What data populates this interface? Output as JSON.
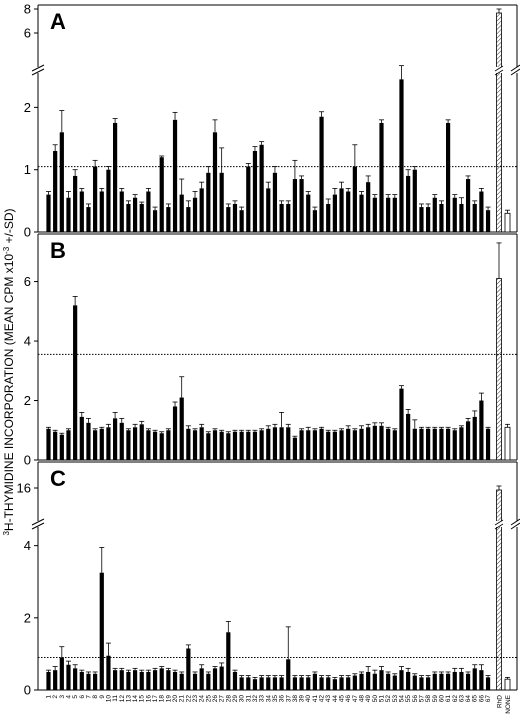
{
  "figure": {
    "ylabel_main": "3H-THYMIDINE INCORPORATION (MEAN CPM x10",
    "ylabel_sup": "-3",
    "ylabel_tail": " +/-SD)",
    "ylabel_pre": "3",
    "ylabel_pre2": "H-THYMIDINE INCORPORATION (MEAN CPM x10",
    "control_labels": [
      "RhD",
      "NONE"
    ]
  },
  "chart_data": [
    {
      "type": "bar",
      "panel": "A",
      "categories": [
        "1",
        "2",
        "3",
        "4",
        "5",
        "6",
        "7",
        "8",
        "9",
        "10",
        "11",
        "12",
        "13",
        "14",
        "15",
        "16",
        "17",
        "18",
        "19",
        "20",
        "21",
        "22",
        "23",
        "24",
        "25",
        "26",
        "27",
        "28",
        "29",
        "30",
        "31",
        "32",
        "33",
        "34",
        "35",
        "36",
        "37",
        "38",
        "39",
        "40",
        "41",
        "42",
        "43",
        "44",
        "45",
        "46",
        "47",
        "48",
        "49",
        "50",
        "51",
        "52",
        "53",
        "54",
        "55",
        "56",
        "57",
        "58",
        "59",
        "60",
        "61",
        "62",
        "63",
        "64",
        "65",
        "66",
        "67"
      ],
      "values": [
        0.6,
        1.3,
        1.6,
        0.55,
        0.9,
        0.65,
        0.4,
        1.05,
        0.65,
        1.0,
        1.75,
        0.65,
        0.45,
        0.55,
        0.45,
        0.65,
        0.35,
        1.2,
        0.4,
        1.8,
        0.6,
        0.4,
        0.55,
        0.7,
        0.95,
        1.6,
        0.95,
        0.4,
        0.45,
        0.35,
        1.05,
        1.3,
        1.4,
        0.7,
        0.95,
        0.45,
        0.45,
        0.85,
        0.85,
        0.6,
        0.35,
        1.85,
        0.45,
        0.6,
        0.7,
        0.65,
        1.05,
        0.6,
        0.8,
        0.55,
        1.75,
        0.55,
        0.55,
        2.45,
        0.9,
        1.0,
        0.4,
        0.4,
        0.55,
        0.45,
        1.75,
        0.55,
        0.45,
        0.85,
        0.45,
        0.65,
        0.35
      ],
      "errors": [
        0.05,
        0.1,
        0.35,
        0.1,
        0.1,
        0.05,
        0.05,
        0.1,
        0.05,
        0.05,
        0.07,
        0.05,
        0.05,
        0.05,
        0.03,
        0.05,
        0.05,
        0.02,
        0.05,
        0.12,
        0.25,
        0.1,
        0.1,
        0.1,
        0.1,
        0.2,
        0.4,
        0.05,
        0.05,
        0.05,
        0.05,
        0.07,
        0.05,
        0.1,
        0.1,
        0.05,
        0.05,
        0.3,
        0.05,
        0.05,
        0.05,
        0.08,
        0.08,
        0.1,
        0.1,
        0.05,
        0.35,
        0.05,
        0.1,
        0.05,
        0.05,
        0.05,
        0.05,
        0.22,
        0.1,
        0.05,
        0.05,
        0.05,
        0.05,
        0.05,
        0.05,
        0.05,
        0.1,
        0.05,
        0.05,
        0.05,
        0.05
      ],
      "controls": [
        {
          "name": "RhD",
          "value": 7.5,
          "error": 0.2
        },
        {
          "name": "NONE",
          "value": 0.3,
          "error": 0.05
        }
      ],
      "ref_line": 1.05,
      "ylim": [
        0,
        2.6
      ],
      "yticks": [
        0,
        1,
        2
      ],
      "upper_ticks": [
        6,
        8
      ],
      "broken_axis": true
    },
    {
      "type": "bar",
      "panel": "B",
      "categories": [
        "1",
        "2",
        "3",
        "4",
        "5",
        "6",
        "7",
        "8",
        "9",
        "10",
        "11",
        "12",
        "13",
        "14",
        "15",
        "16",
        "17",
        "18",
        "19",
        "20",
        "21",
        "22",
        "23",
        "24",
        "25",
        "26",
        "27",
        "28",
        "29",
        "30",
        "31",
        "32",
        "33",
        "34",
        "35",
        "36",
        "37",
        "38",
        "39",
        "40",
        "41",
        "42",
        "43",
        "44",
        "45",
        "46",
        "47",
        "48",
        "49",
        "50",
        "51",
        "52",
        "53",
        "54",
        "55",
        "56",
        "57",
        "58",
        "59",
        "60",
        "61",
        "62",
        "63",
        "64",
        "65",
        "66",
        "67"
      ],
      "values": [
        1.05,
        0.95,
        0.85,
        1.0,
        5.2,
        1.45,
        1.25,
        1.0,
        1.05,
        1.1,
        1.4,
        1.25,
        1.0,
        1.1,
        1.2,
        1.0,
        0.95,
        0.9,
        1.0,
        1.8,
        2.1,
        1.05,
        1.0,
        1.1,
        0.9,
        1.0,
        0.95,
        0.9,
        0.95,
        0.95,
        0.95,
        0.95,
        1.0,
        1.05,
        1.1,
        1.1,
        1.1,
        0.75,
        1.0,
        1.0,
        1.0,
        1.05,
        0.95,
        0.95,
        1.0,
        1.05,
        1.0,
        1.05,
        1.1,
        1.15,
        1.15,
        1.05,
        1.0,
        2.4,
        1.55,
        1.05,
        1.05,
        1.05,
        1.05,
        1.05,
        1.05,
        1.0,
        1.1,
        1.3,
        1.45,
        2.0,
        1.05
      ],
      "errors": [
        0.05,
        0.05,
        0.05,
        0.05,
        0.3,
        0.15,
        0.15,
        0.05,
        0.05,
        0.1,
        0.2,
        0.15,
        0.05,
        0.1,
        0.1,
        0.05,
        0.05,
        0.05,
        0.05,
        0.15,
        0.7,
        0.1,
        0.05,
        0.1,
        0.05,
        0.05,
        0.05,
        0.05,
        0.05,
        0.05,
        0.05,
        0.05,
        0.05,
        0.1,
        0.1,
        0.5,
        0.1,
        0.05,
        0.05,
        0.1,
        0.05,
        0.05,
        0.05,
        0.05,
        0.05,
        0.1,
        0.05,
        0.1,
        0.1,
        0.1,
        0.1,
        0.05,
        0.05,
        0.1,
        0.15,
        0.3,
        0.05,
        0.05,
        0.05,
        0.05,
        0.05,
        0.05,
        0.05,
        0.1,
        0.2,
        0.25,
        0.05
      ],
      "controls": [
        {
          "name": "RhD",
          "value": 6.1,
          "error": 1.2
        },
        {
          "name": "NONE",
          "value": 1.1,
          "error": 0.1
        }
      ],
      "ref_line": 3.55,
      "ylim": [
        0,
        7.6
      ],
      "yticks": [
        0,
        2,
        4,
        6
      ],
      "broken_axis": false
    },
    {
      "type": "bar",
      "panel": "C",
      "categories": [
        "1",
        "2",
        "3",
        "4",
        "5",
        "6",
        "7",
        "8",
        "9",
        "10",
        "11",
        "12",
        "13",
        "14",
        "15",
        "16",
        "17",
        "18",
        "19",
        "20",
        "21",
        "22",
        "23",
        "24",
        "25",
        "26",
        "27",
        "28",
        "29",
        "30",
        "31",
        "32",
        "33",
        "34",
        "35",
        "36",
        "37",
        "38",
        "39",
        "40",
        "41",
        "42",
        "43",
        "44",
        "45",
        "46",
        "47",
        "48",
        "49",
        "50",
        "51",
        "52",
        "53",
        "54",
        "55",
        "56",
        "57",
        "58",
        "59",
        "60",
        "61",
        "62",
        "63",
        "64",
        "65",
        "66",
        "67"
      ],
      "values": [
        0.5,
        0.55,
        0.9,
        0.7,
        0.6,
        0.5,
        0.45,
        0.45,
        3.25,
        0.95,
        0.55,
        0.55,
        0.5,
        0.55,
        0.5,
        0.5,
        0.55,
        0.6,
        0.55,
        0.5,
        0.45,
        1.15,
        0.45,
        0.6,
        0.45,
        0.6,
        0.65,
        1.6,
        0.5,
        0.35,
        0.35,
        0.3,
        0.35,
        0.35,
        0.35,
        0.35,
        0.85,
        0.35,
        0.35,
        0.35,
        0.45,
        0.35,
        0.35,
        0.3,
        0.35,
        0.35,
        0.4,
        0.45,
        0.5,
        0.45,
        0.55,
        0.45,
        0.4,
        0.55,
        0.5,
        0.4,
        0.35,
        0.35,
        0.45,
        0.45,
        0.45,
        0.5,
        0.5,
        0.45,
        0.6,
        0.55,
        0.35
      ],
      "errors": [
        0.05,
        0.1,
        0.3,
        0.1,
        0.1,
        0.05,
        0.05,
        0.05,
        0.7,
        0.35,
        0.05,
        0.05,
        0.05,
        0.05,
        0.05,
        0.05,
        0.05,
        0.05,
        0.05,
        0.05,
        0.05,
        0.1,
        0.05,
        0.1,
        0.05,
        0.05,
        0.1,
        0.3,
        0.05,
        0.05,
        0.05,
        0.05,
        0.05,
        0.05,
        0.05,
        0.05,
        0.9,
        0.05,
        0.05,
        0.05,
        0.05,
        0.05,
        0.05,
        0.05,
        0.05,
        0.05,
        0.05,
        0.05,
        0.15,
        0.1,
        0.1,
        0.05,
        0.05,
        0.1,
        0.1,
        0.05,
        0.05,
        0.05,
        0.05,
        0.05,
        0.05,
        0.1,
        0.1,
        0.05,
        0.1,
        0.15,
        0.05
      ],
      "controls": [
        {
          "name": "RhD",
          "value": 16.2,
          "error": 0.4
        },
        {
          "name": "NONE",
          "value": 0.3,
          "error": 0.05
        }
      ],
      "ref_line": 0.9,
      "ylim": [
        0,
        4.6
      ],
      "yticks": [
        0,
        2,
        4
      ],
      "upper_ticks": [
        16
      ],
      "broken_axis": true
    }
  ]
}
